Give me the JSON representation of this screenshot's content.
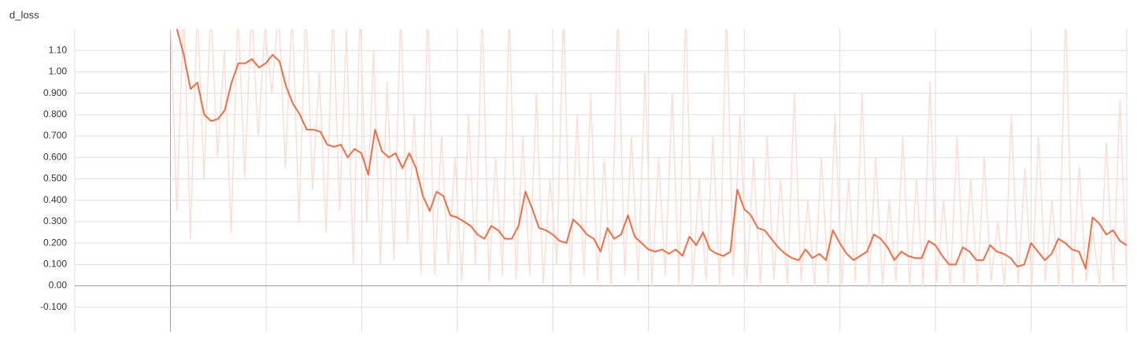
{
  "chart_data": {
    "type": "line",
    "title": "d_loss",
    "ylim": [
      -0.2,
      1.2
    ],
    "yticks": [
      {
        "value": -0.1,
        "label": "-0.100"
      },
      {
        "value": 0,
        "label": "0.00"
      },
      {
        "value": 0.1,
        "label": "0.100"
      },
      {
        "value": 0.2,
        "label": "0.200"
      },
      {
        "value": 0.3,
        "label": "0.300"
      },
      {
        "value": 0.4,
        "label": "0.400"
      },
      {
        "value": 0.5,
        "label": "0.500"
      },
      {
        "value": 0.6,
        "label": "0.600"
      },
      {
        "value": 0.7,
        "label": "0.700"
      },
      {
        "value": 0.8,
        "label": "0.800"
      },
      {
        "value": 0.9,
        "label": "0.900"
      },
      {
        "value": 1.0,
        "label": "1.00"
      },
      {
        "value": 1.1,
        "label": "1.10"
      }
    ],
    "grid": true,
    "series": [
      {
        "color": "#fddcd2",
        "values": [
          1.3,
          0.35,
          1.3,
          0.22,
          1.3,
          0.5,
          1.3,
          0.6,
          1.1,
          0.25,
          1.3,
          0.5,
          1.3,
          0.7,
          1.2,
          0.9,
          1.3,
          0.55,
          1.3,
          0.3,
          1.3,
          0.45,
          1.0,
          0.25,
          1.3,
          0.35,
          1.2,
          0.1,
          1.3,
          0.3,
          1.1,
          0.1,
          0.95,
          0.12,
          1.3,
          0.2,
          0.8,
          0.05,
          1.3,
          0.05,
          0.7,
          0.1,
          0.6,
          0.02,
          0.8,
          0.1,
          1.3,
          0.02,
          0.6,
          0.05,
          1.3,
          0.03,
          0.7,
          0.05,
          0.9,
          0.01,
          0.5,
          0.1,
          1.3,
          0.0,
          0.8,
          0.05,
          0.9,
          0.02,
          0.6,
          0.0,
          1.3,
          0.05,
          0.7,
          0.02,
          1.0,
          0.0,
          0.6,
          0.05,
          0.9,
          0.01,
          1.3,
          0.0,
          0.5,
          0.02,
          0.7,
          0.0,
          1.3,
          0.05,
          0.8,
          0.02,
          0.6,
          0.0,
          0.7,
          0.03,
          0.5,
          0.0,
          0.9,
          0.02,
          0.4,
          0.0,
          0.6,
          0.01,
          0.8,
          0.0,
          0.5,
          0.02,
          0.9,
          0.0,
          0.6,
          0.01,
          0.4,
          0.02,
          0.7,
          0.0,
          0.5,
          0.0,
          0.95,
          0.02,
          0.4,
          0.0,
          0.7,
          0.01,
          0.5,
          0.0,
          0.6,
          0.02,
          0.3,
          0.0,
          0.8,
          0.01,
          0.55,
          0.0,
          0.7,
          0.02,
          0.4,
          0.0,
          1.3,
          0.0,
          0.56,
          0.02,
          0.25,
          0.0,
          0.67,
          0.02,
          0.87,
          0.03
        ]
      },
      {
        "color": "#f26b43",
        "values": [
          1.25,
          1.2,
          1.08,
          0.92,
          0.95,
          0.8,
          0.77,
          0.78,
          0.82,
          0.95,
          1.04,
          1.04,
          1.06,
          1.02,
          1.04,
          1.08,
          1.05,
          0.93,
          0.85,
          0.8,
          0.73,
          0.73,
          0.72,
          0.66,
          0.65,
          0.66,
          0.6,
          0.64,
          0.62,
          0.52,
          0.73,
          0.63,
          0.6,
          0.62,
          0.55,
          0.62,
          0.55,
          0.42,
          0.35,
          0.44,
          0.42,
          0.33,
          0.32,
          0.3,
          0.28,
          0.24,
          0.22,
          0.28,
          0.26,
          0.22,
          0.22,
          0.28,
          0.44,
          0.36,
          0.27,
          0.26,
          0.24,
          0.21,
          0.2,
          0.31,
          0.28,
          0.24,
          0.22,
          0.16,
          0.27,
          0.22,
          0.24,
          0.33,
          0.23,
          0.2,
          0.17,
          0.16,
          0.17,
          0.15,
          0.17,
          0.14,
          0.23,
          0.19,
          0.25,
          0.17,
          0.15,
          0.14,
          0.16,
          0.45,
          0.36,
          0.33,
          0.27,
          0.26,
          0.22,
          0.18,
          0.15,
          0.13,
          0.12,
          0.17,
          0.13,
          0.15,
          0.12,
          0.26,
          0.2,
          0.15,
          0.12,
          0.14,
          0.16,
          0.24,
          0.22,
          0.18,
          0.12,
          0.16,
          0.14,
          0.13,
          0.13,
          0.21,
          0.19,
          0.14,
          0.1,
          0.1,
          0.18,
          0.16,
          0.12,
          0.12,
          0.19,
          0.16,
          0.15,
          0.13,
          0.09,
          0.1,
          0.2,
          0.16,
          0.12,
          0.15,
          0.22,
          0.2,
          0.17,
          0.16,
          0.08,
          0.32,
          0.29,
          0.24,
          0.26,
          0.21,
          0.19
        ]
      }
    ]
  }
}
